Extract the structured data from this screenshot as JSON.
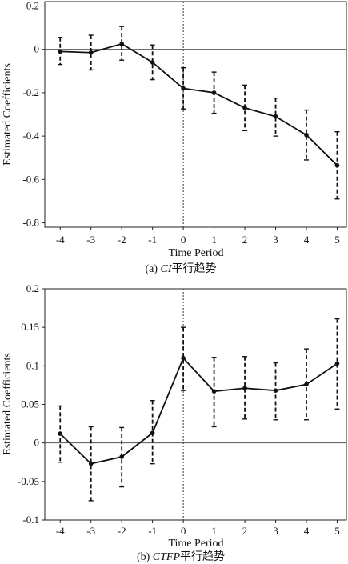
{
  "chart_data": [
    {
      "type": "line",
      "panel": "a",
      "caption_prefix": "(a) ",
      "caption_italic": "CI",
      "caption_suffix": "平行趋势",
      "xlabel": "Time Period",
      "ylabel": "Estimated Coefficients",
      "categories": [
        "-4",
        "-3",
        "-2",
        "-1",
        "0",
        "1",
        "2",
        "3",
        "4",
        "5"
      ],
      "x": [
        -4,
        -3,
        -2,
        -1,
        0,
        1,
        2,
        3,
        4,
        5
      ],
      "values": [
        -0.01,
        -0.015,
        0.025,
        -0.06,
        -0.18,
        -0.2,
        -0.27,
        -0.31,
        -0.395,
        -0.535
      ],
      "ci_lower": [
        -0.07,
        -0.095,
        -0.05,
        -0.14,
        -0.275,
        -0.295,
        -0.375,
        -0.4,
        -0.51,
        -0.69
      ],
      "ci_upper": [
        0.055,
        0.065,
        0.105,
        0.02,
        -0.085,
        -0.105,
        -0.165,
        -0.225,
        -0.28,
        -0.38
      ],
      "yticks": [
        0.2,
        0,
        -0.2,
        -0.4,
        -0.6,
        -0.8
      ],
      "ytick_labels": [
        "0.2",
        "0",
        "-0.2",
        "-0.4",
        "-0.6",
        "-0.8"
      ],
      "ylim": [
        -0.82,
        0.22
      ],
      "xlim": [
        -4.5,
        5.3
      ],
      "reference_hline": 0,
      "reference_vline": 0,
      "grid": false
    },
    {
      "type": "line",
      "panel": "b",
      "caption_prefix": "(b) ",
      "caption_italic": "CTFP",
      "caption_suffix": "平行趋势",
      "xlabel": "Time Period",
      "ylabel": "Estimated Coefficients",
      "categories": [
        "-4",
        "-3",
        "-2",
        "-1",
        "0",
        "1",
        "2",
        "3",
        "4",
        "5"
      ],
      "x": [
        -4,
        -3,
        -2,
        -1,
        0,
        1,
        2,
        3,
        4,
        5
      ],
      "values": [
        0.012,
        -0.027,
        -0.018,
        0.013,
        0.11,
        0.067,
        0.071,
        0.068,
        0.076,
        0.103
      ],
      "ci_lower": [
        -0.025,
        -0.075,
        -0.057,
        -0.027,
        0.068,
        0.021,
        0.031,
        0.03,
        0.03,
        0.044
      ],
      "ci_upper": [
        0.048,
        0.021,
        0.02,
        0.055,
        0.15,
        0.111,
        0.112,
        0.104,
        0.122,
        0.161
      ],
      "yticks": [
        0.2,
        0.15,
        0.1,
        0.05,
        0,
        -0.05,
        -0.1
      ],
      "ytick_labels": [
        "0.2",
        "0.15",
        "0.1",
        "0.05",
        "0",
        "-0.05",
        "-0.1"
      ],
      "ylim": [
        -0.1,
        0.2
      ],
      "xlim": [
        -4.5,
        5.3
      ],
      "reference_hline": 0,
      "reference_vline": 0,
      "grid": false
    }
  ]
}
